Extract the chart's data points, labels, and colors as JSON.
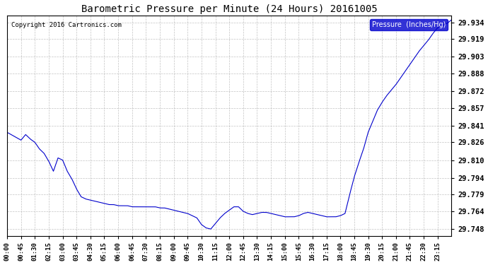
{
  "title": "Barometric Pressure per Minute (24 Hours) 20161005",
  "copyright": "Copyright 2016 Cartronics.com",
  "legend_label": "Pressure  (Inches/Hg)",
  "line_color": "#0000CC",
  "background_color": "#ffffff",
  "plot_bg_color": "#ffffff",
  "grid_color": "#aaaaaa",
  "yticks": [
    29.748,
    29.764,
    29.779,
    29.794,
    29.81,
    29.826,
    29.841,
    29.857,
    29.872,
    29.888,
    29.903,
    29.919,
    29.934
  ],
  "ylim": [
    29.742,
    29.94
  ],
  "xtick_labels": [
    "00:00",
    "00:45",
    "01:30",
    "02:15",
    "03:00",
    "03:45",
    "04:30",
    "05:15",
    "06:00",
    "06:45",
    "07:30",
    "08:15",
    "09:00",
    "09:45",
    "10:30",
    "11:15",
    "12:00",
    "12:45",
    "13:30",
    "14:15",
    "15:00",
    "15:45",
    "16:30",
    "17:15",
    "18:00",
    "18:45",
    "19:30",
    "20:15",
    "21:00",
    "21:45",
    "22:30",
    "23:15"
  ],
  "num_minutes": 1440,
  "key_points": [
    [
      0,
      29.835
    ],
    [
      45,
      29.828
    ],
    [
      60,
      29.833
    ],
    [
      75,
      29.829
    ],
    [
      90,
      29.826
    ],
    [
      105,
      29.82
    ],
    [
      120,
      29.816
    ],
    [
      135,
      29.809
    ],
    [
      150,
      29.8
    ],
    [
      165,
      29.812
    ],
    [
      180,
      29.81
    ],
    [
      195,
      29.8
    ],
    [
      210,
      29.793
    ],
    [
      225,
      29.784
    ],
    [
      240,
      29.777
    ],
    [
      255,
      29.775
    ],
    [
      270,
      29.774
    ],
    [
      285,
      29.773
    ],
    [
      300,
      29.772
    ],
    [
      315,
      29.771
    ],
    [
      330,
      29.77
    ],
    [
      345,
      29.77
    ],
    [
      360,
      29.769
    ],
    [
      375,
      29.769
    ],
    [
      390,
      29.769
    ],
    [
      405,
      29.768
    ],
    [
      420,
      29.768
    ],
    [
      435,
      29.768
    ],
    [
      450,
      29.768
    ],
    [
      465,
      29.768
    ],
    [
      480,
      29.768
    ],
    [
      495,
      29.767
    ],
    [
      510,
      29.767
    ],
    [
      525,
      29.766
    ],
    [
      540,
      29.765
    ],
    [
      555,
      29.764
    ],
    [
      570,
      29.763
    ],
    [
      585,
      29.762
    ],
    [
      600,
      29.76
    ],
    [
      615,
      29.758
    ],
    [
      630,
      29.752
    ],
    [
      645,
      29.749
    ],
    [
      660,
      29.748
    ],
    [
      675,
      29.753
    ],
    [
      690,
      29.758
    ],
    [
      705,
      29.762
    ],
    [
      720,
      29.765
    ],
    [
      735,
      29.768
    ],
    [
      750,
      29.768
    ],
    [
      765,
      29.764
    ],
    [
      780,
      29.762
    ],
    [
      795,
      29.761
    ],
    [
      810,
      29.762
    ],
    [
      825,
      29.763
    ],
    [
      840,
      29.763
    ],
    [
      855,
      29.762
    ],
    [
      870,
      29.761
    ],
    [
      885,
      29.76
    ],
    [
      900,
      29.759
    ],
    [
      915,
      29.759
    ],
    [
      930,
      29.759
    ],
    [
      945,
      29.76
    ],
    [
      960,
      29.762
    ],
    [
      975,
      29.763
    ],
    [
      990,
      29.762
    ],
    [
      1005,
      29.761
    ],
    [
      1020,
      29.76
    ],
    [
      1035,
      29.759
    ],
    [
      1050,
      29.759
    ],
    [
      1065,
      29.759
    ],
    [
      1080,
      29.76
    ],
    [
      1095,
      29.762
    ],
    [
      1110,
      29.779
    ],
    [
      1125,
      29.795
    ],
    [
      1140,
      29.808
    ],
    [
      1155,
      29.82
    ],
    [
      1170,
      29.835
    ],
    [
      1185,
      29.845
    ],
    [
      1200,
      29.855
    ],
    [
      1215,
      29.862
    ],
    [
      1230,
      29.868
    ],
    [
      1245,
      29.873
    ],
    [
      1260,
      29.878
    ],
    [
      1275,
      29.884
    ],
    [
      1290,
      29.89
    ],
    [
      1305,
      29.896
    ],
    [
      1320,
      29.902
    ],
    [
      1335,
      29.908
    ],
    [
      1350,
      29.913
    ],
    [
      1365,
      29.918
    ],
    [
      1380,
      29.924
    ],
    [
      1395,
      29.929
    ],
    [
      1410,
      29.931
    ],
    [
      1425,
      29.933
    ],
    [
      1435,
      29.935
    ],
    [
      1439,
      29.936
    ]
  ]
}
